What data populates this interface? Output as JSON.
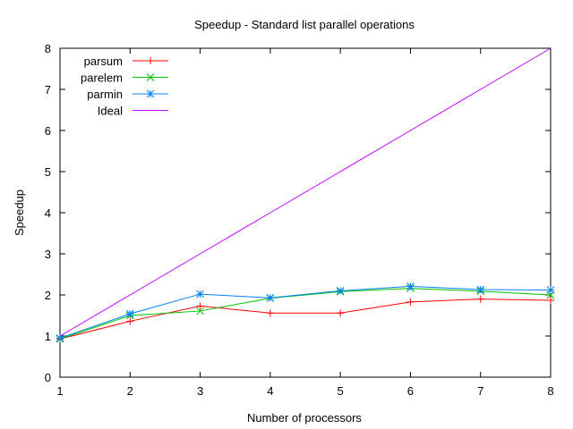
{
  "chart_data": {
    "type": "line",
    "title": "Speedup - Standard list parallel operations",
    "xlabel": "Number of processors",
    "ylabel": "Speedup",
    "xlim": [
      1,
      8
    ],
    "ylim": [
      0,
      8
    ],
    "x_ticks": [
      "1",
      "2",
      "3",
      "4",
      "5",
      "6",
      "7",
      "8"
    ],
    "y_ticks": [
      "0",
      "1",
      "2",
      "3",
      "4",
      "5",
      "6",
      "7",
      "8"
    ],
    "grid": false,
    "legend_position": "top-left",
    "x": [
      1,
      2,
      3,
      4,
      5,
      6,
      7,
      8
    ],
    "series": [
      {
        "name": "parsum",
        "color": "#ff0000",
        "marker": "plus",
        "values": [
          0.93,
          1.36,
          1.73,
          1.56,
          1.56,
          1.83,
          1.9,
          1.87
        ]
      },
      {
        "name": "parelem",
        "color": "#00c000",
        "marker": "cross",
        "values": [
          0.93,
          1.5,
          1.61,
          1.92,
          2.08,
          2.16,
          2.09,
          2.0
        ]
      },
      {
        "name": "parmin",
        "color": "#0080ff",
        "marker": "star",
        "values": [
          0.95,
          1.54,
          2.02,
          1.93,
          2.1,
          2.21,
          2.13,
          2.12
        ]
      },
      {
        "name": "Ideal",
        "color": "#c000ff",
        "marker": "none",
        "values": [
          1,
          2,
          3,
          4,
          5,
          6,
          7,
          8
        ]
      }
    ]
  }
}
